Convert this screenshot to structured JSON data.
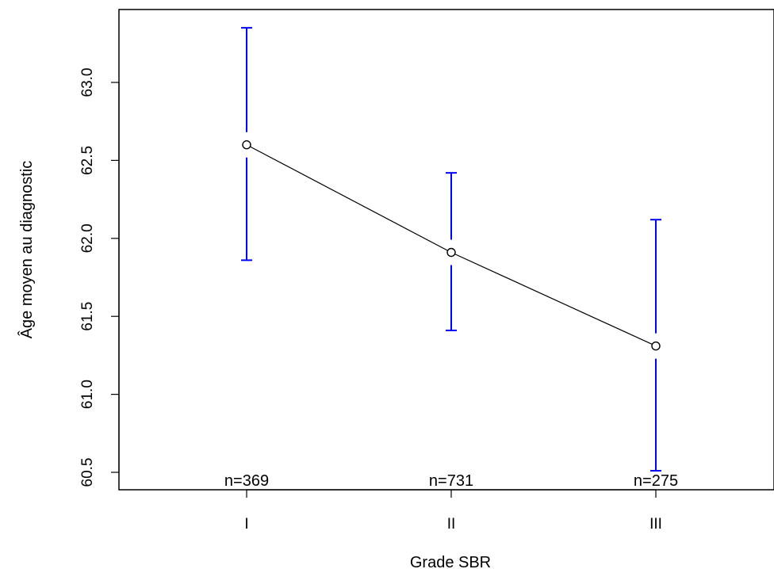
{
  "chart_data": {
    "type": "line",
    "title": "",
    "xlabel": "Grade SBR",
    "ylabel": "Âge moyen au diagnostic",
    "categories": [
      "I",
      "II",
      "III"
    ],
    "series": [
      {
        "values": [
          62.6,
          61.91,
          61.31
        ],
        "ci_lower": [
          61.86,
          61.41,
          60.51
        ],
        "ci_upper": [
          63.35,
          62.42,
          62.12
        ]
      }
    ],
    "annotations": [
      "n=369",
      "n=731",
      "n=275"
    ],
    "yticks": [
      "60.5",
      "61.0",
      "61.5",
      "62.0",
      "62.5",
      "63.0"
    ],
    "ylim": [
      60.5,
      63.35
    ],
    "grid": false,
    "legend": "none",
    "colors": {
      "line": "#000000",
      "error_bars": "#0000ff",
      "axes": "#000000"
    }
  }
}
